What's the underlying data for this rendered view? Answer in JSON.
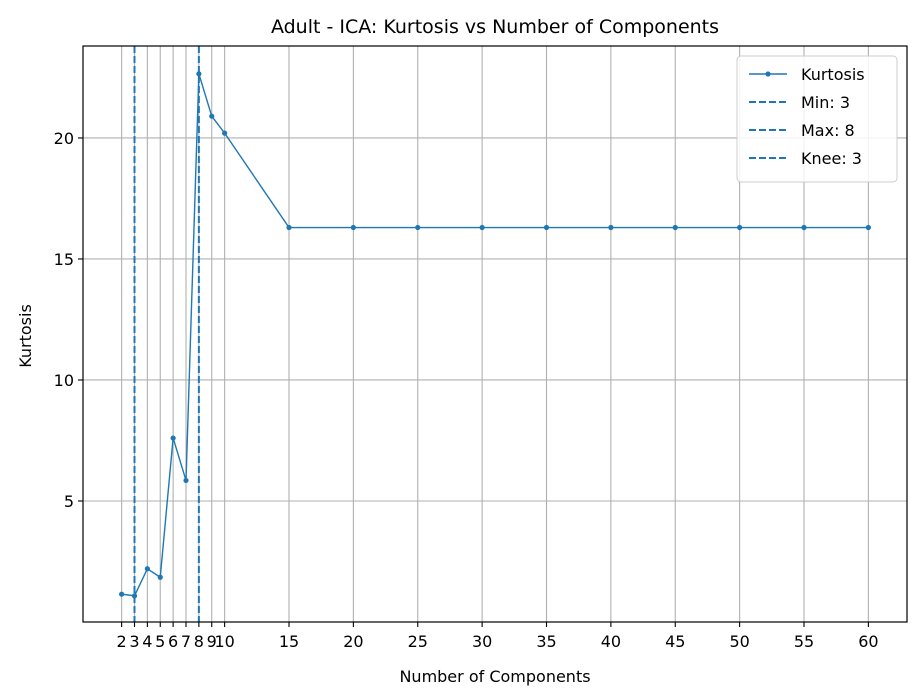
{
  "chart_data": {
    "type": "line",
    "title": "Adult - ICA: Kurtosis vs Number of Components",
    "xlabel": "Number of Components",
    "ylabel": "Kurtosis",
    "xlim": [
      -1,
      63
    ],
    "ylim": [
      0,
      23.8
    ],
    "xticks": [
      2,
      3,
      4,
      5,
      6,
      7,
      8,
      9,
      10,
      15,
      20,
      25,
      30,
      35,
      40,
      45,
      50,
      55,
      60
    ],
    "yticks": [
      5,
      10,
      15,
      20
    ],
    "grid": true,
    "legend_position": "top-right",
    "series": [
      {
        "name": "Kurtosis",
        "color": "#1f77b4",
        "x": [
          2,
          3,
          4,
          5,
          6,
          7,
          8,
          9,
          10,
          15,
          20,
          25,
          30,
          35,
          40,
          45,
          50,
          55,
          60
        ],
        "y": [
          1.15,
          1.08,
          2.2,
          1.85,
          7.6,
          5.85,
          22.65,
          20.9,
          20.2,
          16.3,
          16.3,
          16.3,
          16.3,
          16.3,
          16.3,
          16.3,
          16.3,
          16.3,
          16.3
        ]
      }
    ],
    "vlines": [
      {
        "name": "Min: 3",
        "x": 3,
        "color": "#1f77b4",
        "style": "dashed"
      },
      {
        "name": "Max: 8",
        "x": 8,
        "color": "#1f77b4",
        "style": "dashed"
      },
      {
        "name": "Knee: 3",
        "x": 3,
        "color": "#1f77b4",
        "style": "dashed"
      }
    ]
  }
}
